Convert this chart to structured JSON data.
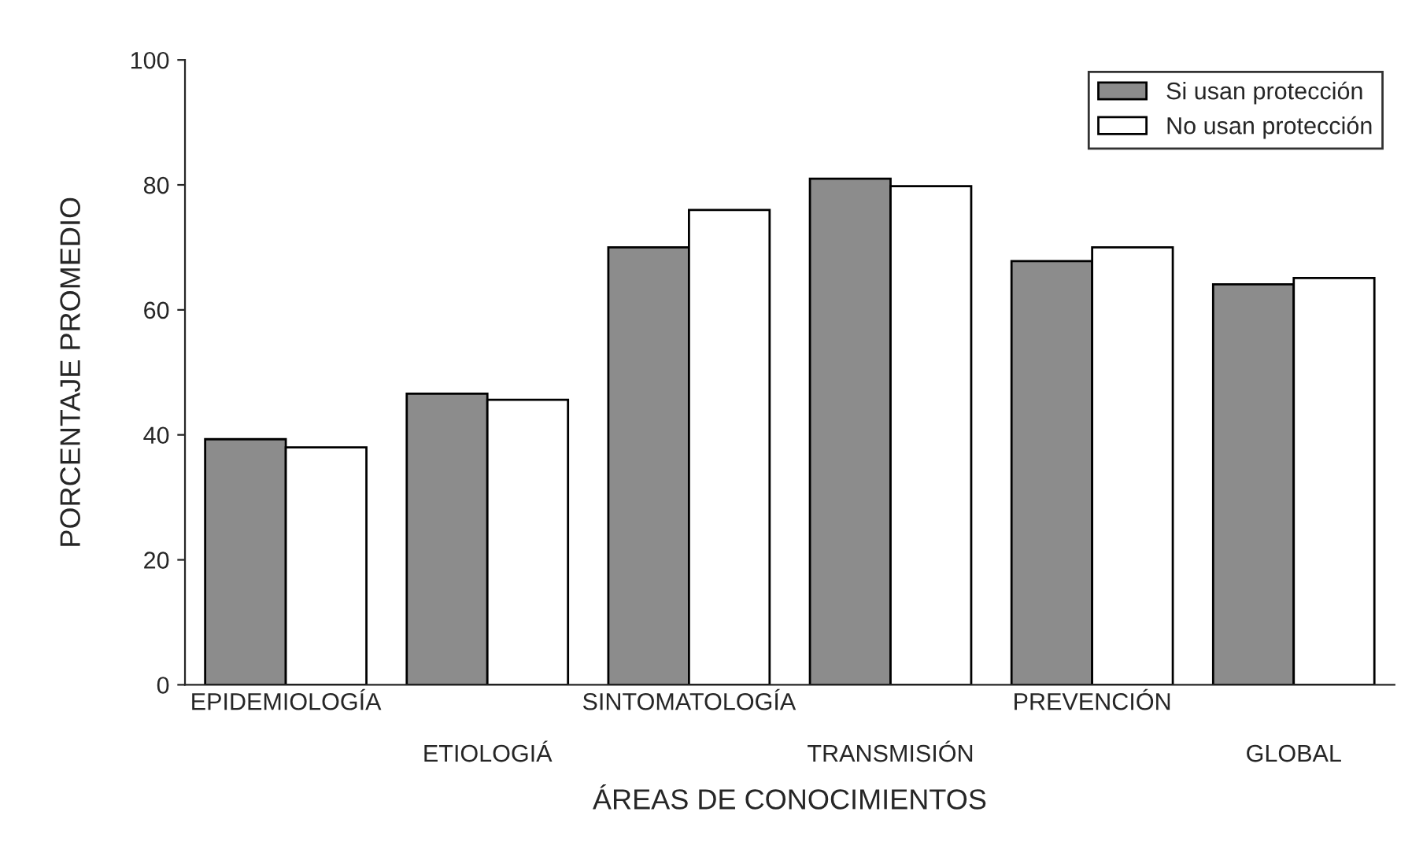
{
  "chart_data": {
    "type": "bar",
    "xlabel": "ÁREAS DE CONOCIMIENTOS",
    "ylabel": "PORCENTAJE PROMEDIO",
    "categories": [
      "EPIDEMIOLOGÍA",
      "ETIOLOGIÁ",
      "SINTOMATOLOGÍA",
      "TRANSMISIÓN",
      "PREVENCIÓN",
      "GLOBAL"
    ],
    "series": [
      {
        "name": "Si usan protección",
        "color": "#8c8c8c",
        "values": [
          39.3,
          46.6,
          70,
          81,
          67.8,
          64.1
        ]
      },
      {
        "name": "No usan protección",
        "color": "#ffffff",
        "values": [
          38,
          45.6,
          76,
          79.8,
          70,
          65.1
        ]
      }
    ],
    "ylim": [
      0,
      100
    ],
    "yticks": [
      0,
      20,
      40,
      60,
      80,
      100
    ],
    "grid": false,
    "legend": "top right"
  }
}
